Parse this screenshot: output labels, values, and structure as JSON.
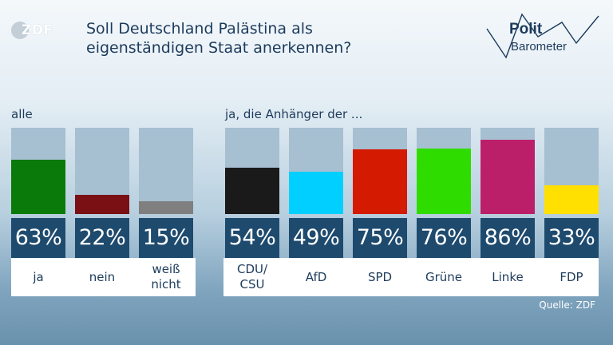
{
  "logo_text": "ZDF",
  "title_line1": "Soll Deutschland Palästina als",
  "title_line2": "eigenständigen Staat anerkennen?",
  "brand": {
    "line1": "Polit",
    "line2": "Barometer"
  },
  "group_all_label": "alle",
  "group_party_label": "ja, die Anhänger der ...",
  "source": "Quelle: ZDF",
  "colors": {
    "pct_box": "#1e4a6e",
    "bar_bg": "#a6bfd1",
    "text": "#1d3b5c"
  },
  "chart_data": {
    "type": "bar",
    "ylim": [
      0,
      100
    ],
    "title": "Soll Deutschland Palästina als eigenständigen Staat anerkennen?",
    "groups": [
      {
        "label": "alle",
        "bars": [
          {
            "category": "ja",
            "value": 63,
            "pct_label": "63%",
            "color": "#0a7a0a"
          },
          {
            "category": "nein",
            "value": 22,
            "pct_label": "22%",
            "color": "#7a0f14"
          },
          {
            "category": "weiß\nnicht",
            "value": 15,
            "pct_label": "15%",
            "color": "#7f7f7f"
          }
        ]
      },
      {
        "label": "ja, die Anhänger der ...",
        "bars": [
          {
            "category": "CDU/\nCSU",
            "value": 54,
            "pct_label": "54%",
            "color": "#1a1a1a"
          },
          {
            "category": "AfD",
            "value": 49,
            "pct_label": "49%",
            "color": "#00cfff"
          },
          {
            "category": "SPD",
            "value": 75,
            "pct_label": "75%",
            "color": "#d41a00"
          },
          {
            "category": "Grüne",
            "value": 76,
            "pct_label": "76%",
            "color": "#2fdc00"
          },
          {
            "category": "Linke",
            "value": 86,
            "pct_label": "86%",
            "color": "#bc1f6a"
          },
          {
            "category": "FDP",
            "value": 33,
            "pct_label": "33%",
            "color": "#ffe000"
          }
        ]
      }
    ]
  }
}
